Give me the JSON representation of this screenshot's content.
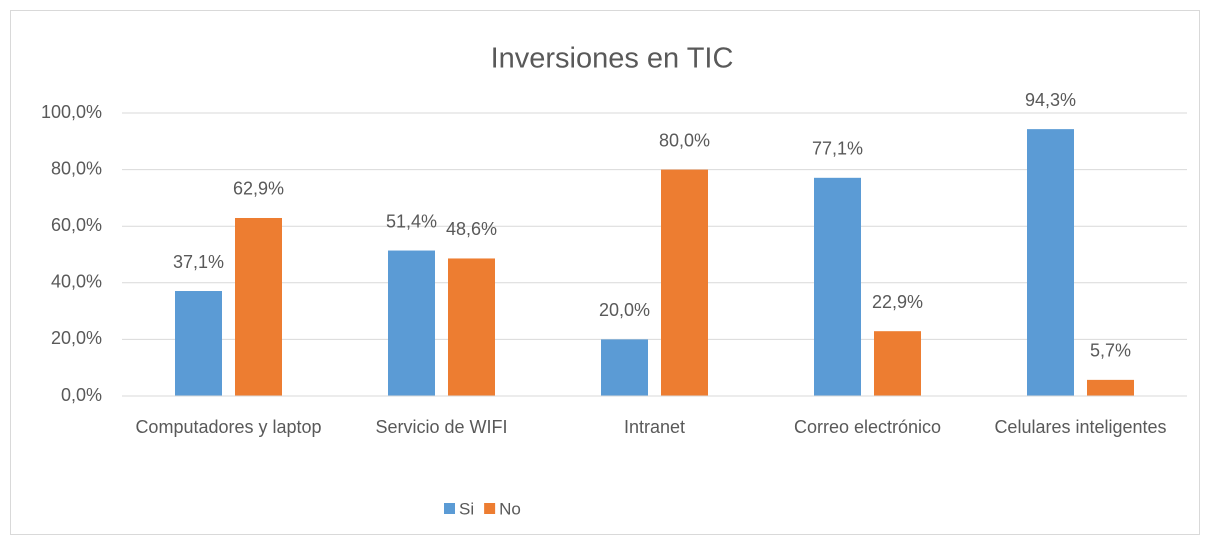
{
  "chart_data": {
    "type": "bar",
    "title": "Inversiones en TIC",
    "categories": [
      "Computadores y laptop",
      "Servicio de WIFI",
      "Intranet",
      "Correo electrónico",
      "Celulares inteligentes"
    ],
    "series": [
      {
        "name": "Si",
        "color": "#5b9bd5",
        "values": [
          37.1,
          51.4,
          20.0,
          77.1,
          94.3
        ],
        "value_labels": [
          "37,1%",
          "51,4%",
          "20,0%",
          "77,1%",
          "94,3%"
        ]
      },
      {
        "name": "No",
        "color": "#ed7d31",
        "values": [
          62.9,
          48.6,
          80.0,
          22.9,
          5.7
        ],
        "value_labels": [
          "62,9%",
          "48,6%",
          "80,0%",
          "22,9%",
          "5,7%"
        ]
      }
    ],
    "ylim": [
      0,
      100
    ],
    "yticks": [
      {
        "value": 0,
        "label": "0,0%"
      },
      {
        "value": 20,
        "label": "20,0%"
      },
      {
        "value": 40,
        "label": "40,0%"
      },
      {
        "value": 60,
        "label": "60,0%"
      },
      {
        "value": 80,
        "label": "80,0%"
      },
      {
        "value": 100,
        "label": "100,0%"
      }
    ],
    "grid": true,
    "legend": "bottom"
  }
}
